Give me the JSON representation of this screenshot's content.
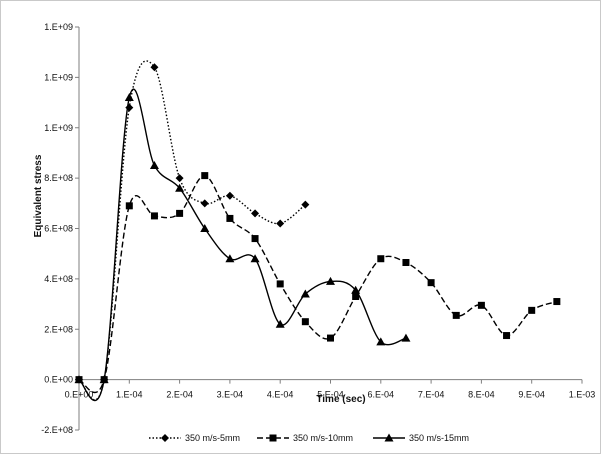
{
  "chart_data": {
    "type": "line",
    "title": "",
    "xlabel": "Time (sec)",
    "ylabel": "Equivalent stress",
    "xlim": [
      0,
      0.001
    ],
    "ylim": [
      -200000000,
      1400000000
    ],
    "x_ticks": [
      0,
      0.0001,
      0.0002,
      0.0003,
      0.0004,
      0.0005,
      0.0006,
      0.0007,
      0.0008,
      0.0009,
      0.001
    ],
    "x_tick_labels": [
      "0.E+00",
      "1.E-04",
      "2.E-04",
      "3.E-04",
      "4.E-04",
      "5.E-04",
      "6.E-04",
      "7.E-04",
      "8.E-04",
      "9.E-04",
      "1.E-03"
    ],
    "y_ticks": [
      -200000000,
      0,
      200000000,
      400000000,
      600000000,
      800000000,
      1000000000,
      1200000000,
      1400000000
    ],
    "y_tick_labels": [
      "-2.E+08",
      "0.E+00",
      "2.E+08",
      "4.E+08",
      "6.E+08",
      "8.E+08",
      "1.E+09",
      "1.E+09",
      "1.E+09"
    ],
    "grid": false,
    "legend_position": "bottom",
    "series": [
      {
        "name": "350 m/s-5mm",
        "marker": "diamond",
        "line_style": "dotted",
        "x": [
          0,
          5e-05,
          0.0001,
          0.00015,
          0.0002,
          0.00025,
          0.0003,
          0.00035,
          0.0004,
          0.00045
        ],
        "y": [
          0,
          0,
          1080000000,
          1240000000,
          800000000,
          700000000,
          730000000,
          660000000,
          620000000,
          695000000
        ]
      },
      {
        "name": "350 m/s-10mm",
        "marker": "square",
        "line_style": "dashed",
        "x": [
          0,
          5e-05,
          0.0001,
          0.00015,
          0.0002,
          0.00025,
          0.0003,
          0.00035,
          0.0004,
          0.00045,
          0.0005,
          0.00055,
          0.0006,
          0.00065,
          0.0007,
          0.00075,
          0.0008,
          0.00085,
          0.0009,
          0.00095
        ],
        "y": [
          0,
          0,
          690000000,
          650000000,
          660000000,
          810000000,
          640000000,
          560000000,
          380000000,
          230000000,
          165000000,
          330000000,
          480000000,
          465000000,
          385000000,
          255000000,
          295000000,
          175000000,
          275000000,
          310000000
        ]
      },
      {
        "name": "350 m/s-15mm",
        "marker": "triangle",
        "line_style": "solid",
        "x": [
          0,
          5e-05,
          0.0001,
          0.00015,
          0.0002,
          0.00025,
          0.0003,
          0.00035,
          0.0004,
          0.00045,
          0.0005,
          0.00055,
          0.0006,
          0.00065
        ],
        "y": [
          0,
          0,
          1120000000,
          850000000,
          760000000,
          600000000,
          480000000,
          480000000,
          220000000,
          340000000,
          390000000,
          355000000,
          150000000,
          165000000
        ]
      }
    ]
  }
}
